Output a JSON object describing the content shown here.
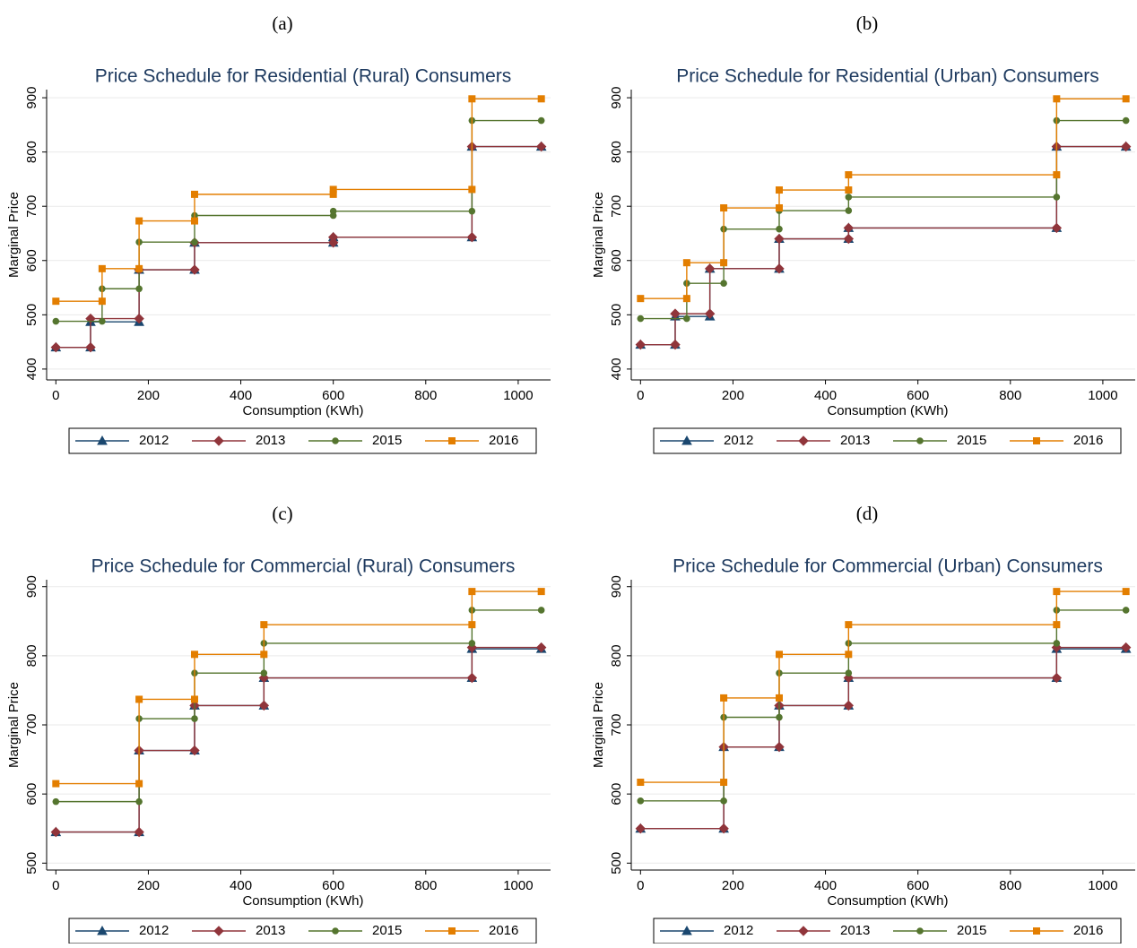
{
  "chart_data": [
    {
      "type": "line",
      "panel": "(a)",
      "title": "Price Schedule for Residential (Rural) Consumers",
      "x_label": "Consumption (KWh)",
      "y_label": "Marginal Price",
      "xlim": [
        -20,
        1070
      ],
      "ylim": [
        380,
        915
      ],
      "xticks": [
        0,
        200,
        400,
        600,
        800,
        1000
      ],
      "yticks": [
        400,
        500,
        600,
        700,
        800,
        900
      ],
      "grid": true,
      "series": [
        {
          "name": "2012",
          "color": "#1a476f",
          "marker": "triangle",
          "x": [
            0,
            75,
            75,
            180,
            180,
            300,
            300,
            600,
            600,
            900,
            900,
            1050
          ],
          "values": [
            440,
            440,
            487,
            487,
            583,
            583,
            633,
            633,
            643,
            643,
            810,
            810
          ]
        },
        {
          "name": "2013",
          "color": "#90353b",
          "marker": "diamond",
          "x": [
            0,
            75,
            75,
            180,
            180,
            300,
            300,
            600,
            600,
            900,
            900,
            1050
          ],
          "values": [
            440,
            440,
            493,
            493,
            583,
            583,
            633,
            633,
            643,
            643,
            810,
            810
          ]
        },
        {
          "name": "2015",
          "color": "#55752f",
          "marker": "circle",
          "x": [
            0,
            100,
            100,
            180,
            180,
            300,
            300,
            600,
            600,
            900,
            900,
            1050
          ],
          "values": [
            488,
            488,
            548,
            548,
            634,
            634,
            683,
            683,
            691,
            691,
            858,
            858
          ]
        },
        {
          "name": "2016",
          "color": "#e37e00",
          "marker": "square",
          "x": [
            0,
            100,
            100,
            180,
            180,
            300,
            300,
            600,
            600,
            900,
            900,
            1050
          ],
          "values": [
            525,
            525,
            585,
            585,
            673,
            673,
            722,
            722,
            731,
            731,
            898,
            898
          ]
        }
      ]
    },
    {
      "type": "line",
      "panel": "(b)",
      "title": "Price Schedule for Residential (Urban) Consumers",
      "x_label": "Consumption (KWh)",
      "y_label": "Marginal Price",
      "xlim": [
        -20,
        1070
      ],
      "ylim": [
        380,
        915
      ],
      "xticks": [
        0,
        200,
        400,
        600,
        800,
        1000
      ],
      "yticks": [
        400,
        500,
        600,
        700,
        800,
        900
      ],
      "grid": true,
      "series": [
        {
          "name": "2012",
          "color": "#1a476f",
          "marker": "triangle",
          "x": [
            0,
            75,
            75,
            150,
            150,
            300,
            300,
            450,
            450,
            900,
            900,
            1050
          ],
          "values": [
            445,
            445,
            497,
            497,
            585,
            585,
            640,
            640,
            660,
            660,
            810,
            810
          ]
        },
        {
          "name": "2013",
          "color": "#90353b",
          "marker": "diamond",
          "x": [
            0,
            75,
            75,
            150,
            150,
            300,
            300,
            450,
            450,
            900,
            900,
            1050
          ],
          "values": [
            445,
            445,
            502,
            502,
            585,
            585,
            640,
            640,
            660,
            660,
            810,
            810
          ]
        },
        {
          "name": "2015",
          "color": "#55752f",
          "marker": "circle",
          "x": [
            0,
            100,
            100,
            180,
            180,
            300,
            300,
            450,
            450,
            900,
            900,
            1050
          ],
          "values": [
            493,
            493,
            558,
            558,
            658,
            658,
            692,
            692,
            717,
            717,
            858,
            858
          ]
        },
        {
          "name": "2016",
          "color": "#e37e00",
          "marker": "square",
          "x": [
            0,
            100,
            100,
            180,
            180,
            300,
            300,
            450,
            450,
            900,
            900,
            1050
          ],
          "values": [
            530,
            530,
            596,
            596,
            697,
            697,
            730,
            730,
            758,
            758,
            898,
            898
          ]
        }
      ]
    },
    {
      "type": "line",
      "panel": "(c)",
      "title": "Price Schedule for Commercial (Rural) Consumers",
      "x_label": "Consumption (KWh)",
      "y_label": "Marginal Price",
      "xlim": [
        -20,
        1070
      ],
      "ylim": [
        490,
        910
      ],
      "xticks": [
        0,
        200,
        400,
        600,
        800,
        1000
      ],
      "yticks": [
        500,
        600,
        700,
        800,
        900
      ],
      "grid": true,
      "series": [
        {
          "name": "2012",
          "color": "#1a476f",
          "marker": "triangle",
          "x": [
            0,
            180,
            180,
            300,
            300,
            450,
            450,
            900,
            900,
            1050
          ],
          "values": [
            545,
            545,
            663,
            663,
            728,
            728,
            768,
            768,
            810,
            810
          ]
        },
        {
          "name": "2013",
          "color": "#90353b",
          "marker": "diamond",
          "x": [
            0,
            180,
            180,
            300,
            300,
            450,
            450,
            900,
            900,
            1050
          ],
          "values": [
            545,
            545,
            663,
            663,
            728,
            728,
            768,
            768,
            812,
            812
          ]
        },
        {
          "name": "2015",
          "color": "#55752f",
          "marker": "circle",
          "x": [
            0,
            180,
            180,
            300,
            300,
            450,
            450,
            900,
            900,
            1050
          ],
          "values": [
            589,
            589,
            709,
            709,
            775,
            775,
            818,
            818,
            866,
            866
          ]
        },
        {
          "name": "2016",
          "color": "#e37e00",
          "marker": "square",
          "x": [
            0,
            180,
            180,
            300,
            300,
            450,
            450,
            900,
            900,
            1050
          ],
          "values": [
            615,
            615,
            737,
            737,
            802,
            802,
            845,
            845,
            893,
            893
          ]
        }
      ]
    },
    {
      "type": "line",
      "panel": "(d)",
      "title": "Price Schedule for Commercial (Urban) Consumers",
      "x_label": "Consumption (KWh)",
      "y_label": "Marginal Price",
      "xlim": [
        -20,
        1070
      ],
      "ylim": [
        490,
        910
      ],
      "xticks": [
        0,
        200,
        400,
        600,
        800,
        1000
      ],
      "yticks": [
        500,
        600,
        700,
        800,
        900
      ],
      "grid": true,
      "series": [
        {
          "name": "2012",
          "color": "#1a476f",
          "marker": "triangle",
          "x": [
            0,
            180,
            180,
            300,
            300,
            450,
            450,
            900,
            900,
            1050
          ],
          "values": [
            550,
            550,
            668,
            668,
            728,
            728,
            768,
            768,
            810,
            810
          ]
        },
        {
          "name": "2013",
          "color": "#90353b",
          "marker": "diamond",
          "x": [
            0,
            180,
            180,
            300,
            300,
            450,
            450,
            900,
            900,
            1050
          ],
          "values": [
            550,
            550,
            668,
            668,
            728,
            728,
            768,
            768,
            812,
            812
          ]
        },
        {
          "name": "2015",
          "color": "#55752f",
          "marker": "circle",
          "x": [
            0,
            180,
            180,
            300,
            300,
            450,
            450,
            900,
            900,
            1050
          ],
          "values": [
            590,
            590,
            711,
            711,
            775,
            775,
            818,
            818,
            866,
            866
          ]
        },
        {
          "name": "2016",
          "color": "#e37e00",
          "marker": "square",
          "x": [
            0,
            180,
            180,
            300,
            300,
            450,
            450,
            900,
            900,
            1050
          ],
          "values": [
            617,
            617,
            739,
            739,
            802,
            802,
            845,
            845,
            893,
            893
          ]
        }
      ]
    }
  ]
}
